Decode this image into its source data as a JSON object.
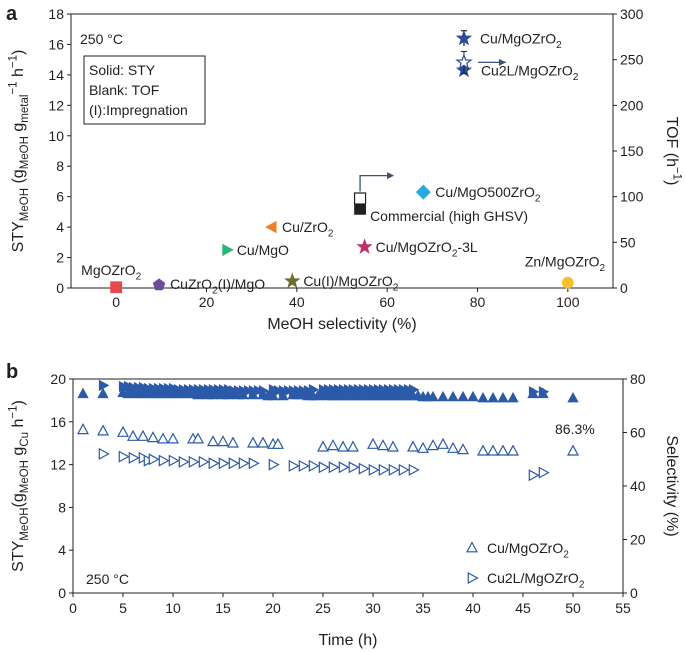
{
  "chart_data": [
    {
      "type": "scatter",
      "panel_label": "a",
      "condition": "250 °C",
      "legend_box": [
        "Solid: STY",
        "Blank: TOF",
        "(I):Impregnation"
      ],
      "xlabel": "MeOH selectivity (%)",
      "ylabel_left": "STY_MeOH (g_MeOH g_metal^-1 h^-1)",
      "ylabel_right": "TOF (h^-1)",
      "xlim": [
        -10,
        110
      ],
      "ylim_left": [
        0,
        18
      ],
      "ylim_right": [
        0,
        300
      ],
      "xticks": [
        "0",
        "20",
        "40",
        "60",
        "80",
        "100"
      ],
      "yticks_left": [
        "0",
        "2",
        "4",
        "6",
        "8",
        "10",
        "12",
        "14",
        "16",
        "18"
      ],
      "yticks_right": [
        "0",
        "50",
        "100",
        "150",
        "200",
        "250",
        "300"
      ],
      "points": [
        {
          "label": "MgOZrO₂",
          "x": 0,
          "y": 0.05,
          "marker": "square",
          "color": "#e8474b",
          "filled": true
        },
        {
          "label": "CuZrO₂(I)/MgO",
          "x": 9.5,
          "y": 0.2,
          "marker": "pentagon",
          "color": "#6a4c9c",
          "filled": true
        },
        {
          "label": "Cu/MgO",
          "x": 24.5,
          "y": 2.5,
          "marker": "triangle-right",
          "color": "#2bb673",
          "filled": true
        },
        {
          "label": "Cu/ZrO₂",
          "x": 34.5,
          "y": 4.0,
          "marker": "triangle-left",
          "color": "#f07f2b",
          "filled": true
        },
        {
          "label": "Cu(I)/MgOZrO₂",
          "x": 39,
          "y": 0.45,
          "marker": "star",
          "color": "#6d6e2b",
          "filled": true
        },
        {
          "label": "Commercial (high GHSV)",
          "x": 54,
          "y": 5.2,
          "marker": "square",
          "color": "#231f20",
          "filled": true
        },
        {
          "label": "Cu/MgOZrO₂-3L",
          "x": 55,
          "y": 2.7,
          "marker": "star",
          "color": "#c0306c",
          "filled": true
        },
        {
          "label": "Cu/MgO500ZrO₂",
          "x": 68,
          "y": 6.3,
          "marker": "diamond",
          "color": "#27a9e1",
          "filled": true
        },
        {
          "label": "Cu/MgOZrO₂",
          "x": 77,
          "y": 16.4,
          "y_err": 0.5,
          "marker": "star",
          "color": "#2b4c9b",
          "filled": true
        },
        {
          "label": "Cu2L/MgOZrO₂",
          "x": 77,
          "y": 14.3,
          "marker": "star",
          "color": "#2b4c9b",
          "filled": true
        },
        {
          "label": "Zn/MgOZrO₂",
          "x": 100,
          "y": 0.35,
          "marker": "circle",
          "color": "#f5c02d",
          "filled": true
        }
      ],
      "tof_points": [
        {
          "for": "Cu/MgOZrO₂",
          "x": 77,
          "tof": 247,
          "tof_err": 12,
          "marker": "star",
          "color": "#2b4c9b",
          "filled": false
        },
        {
          "for": "Commercial (high GHSV)",
          "x": 54,
          "tof": 98,
          "tof_err": 4,
          "marker": "square",
          "color": "#231f20",
          "filled": false
        }
      ]
    },
    {
      "type": "scatter",
      "panel_label": "b",
      "condition": "250 °C",
      "xlabel": "Time (h)",
      "ylabel_left": "STY_MeOH (g_MeOH g_Cu^-1 h^-1)",
      "ylabel_right": "Selectivity (%)",
      "xlim": [
        0,
        55
      ],
      "ylim_left": [
        0,
        20
      ],
      "ylim_right": [
        0,
        80
      ],
      "xticks": [
        "0",
        "5",
        "10",
        "15",
        "20",
        "25",
        "30",
        "35",
        "40",
        "45",
        "50",
        "55"
      ],
      "yticks_left": [
        "0",
        "4",
        "8",
        "12",
        "16",
        "20"
      ],
      "yticks_right": [
        "0",
        "20",
        "40",
        "60",
        "80"
      ],
      "annotation": "86.3%",
      "series": [
        {
          "name": "Cu/MgOZrO₂",
          "marker": "triangle-up",
          "color": "#2b5aa8",
          "filled": true,
          "axis": "left",
          "x": [
            1,
            3,
            5,
            5.5,
            6,
            6.5,
            7,
            7.5,
            8,
            8.5,
            9,
            9.5,
            10,
            10.5,
            11,
            11.5,
            12,
            12.5,
            13,
            13.5,
            14,
            14.5,
            15,
            15.5,
            16,
            16.5,
            17,
            18,
            19,
            19.5,
            20,
            21,
            22,
            22.5,
            23,
            23.5,
            24,
            24.5,
            25,
            25.5,
            26,
            26.5,
            27,
            27.5,
            28,
            28.5,
            29,
            29.5,
            30,
            30.5,
            31,
            31.5,
            32,
            32.5,
            33,
            33.5,
            34,
            34.5,
            35,
            35.5,
            36,
            37,
            38,
            39,
            40,
            41,
            42,
            43,
            44,
            46,
            47,
            50
          ],
          "y": [
            18.6,
            18.6,
            18.7,
            18.6,
            18.6,
            18.6,
            18.6,
            18.6,
            18.6,
            18.6,
            18.6,
            18.6,
            18.6,
            18.6,
            18.6,
            18.6,
            18.6,
            18.5,
            18.6,
            18.5,
            18.5,
            18.6,
            18.5,
            18.5,
            18.6,
            18.5,
            18.5,
            18.5,
            18.5,
            18.4,
            18.4,
            18.4,
            18.5,
            18.5,
            18.5,
            18.4,
            18.4,
            18.4,
            18.5,
            18.4,
            18.4,
            18.4,
            18.4,
            18.4,
            18.4,
            18.4,
            18.4,
            18.4,
            18.4,
            18.4,
            18.4,
            18.4,
            18.4,
            18.4,
            18.4,
            18.4,
            18.4,
            18.4,
            18.3,
            18.3,
            18.3,
            18.3,
            18.3,
            18.3,
            18.3,
            18.2,
            18.2,
            18.2,
            18.2,
            18.6,
            18.6,
            18.2
          ]
        },
        {
          "name": "Cu2L/MgOZrO₂",
          "marker": "triangle-right",
          "color": "#2b5aa8",
          "filled": true,
          "axis": "left",
          "x": [
            3,
            5,
            5.5,
            6,
            6.5,
            7,
            7.5,
            8,
            8.5,
            9,
            9.5,
            10,
            10.5,
            11,
            11.5,
            12,
            12.5,
            13,
            13.5,
            14,
            14.5,
            15,
            15.5,
            16,
            16.5,
            17,
            17.5,
            18,
            18.5,
            19,
            20,
            20.5,
            21,
            21.5,
            22,
            22.5,
            23,
            23.5,
            24,
            25,
            25.5,
            26,
            26.5,
            27,
            27.5,
            28,
            28.5,
            29,
            29.5,
            30,
            30.5,
            31,
            31.5,
            32,
            32.5,
            33,
            33.5,
            34,
            46,
            47
          ],
          "y": [
            19.4,
            19.3,
            19.3,
            19.2,
            19.2,
            19.2,
            19.1,
            19.1,
            19.1,
            19.1,
            19.1,
            19.1,
            19.0,
            19.0,
            19.0,
            19.0,
            19.0,
            19.0,
            19.0,
            19.0,
            19.0,
            19.0,
            19.0,
            18.9,
            18.9,
            18.9,
            18.9,
            18.9,
            18.9,
            18.9,
            19.0,
            18.9,
            18.9,
            18.9,
            18.9,
            18.9,
            18.9,
            18.9,
            19.0,
            19.0,
            19.0,
            19.0,
            19.0,
            19.0,
            19.0,
            19.0,
            19.0,
            19.0,
            19.0,
            19.0,
            19.0,
            19.0,
            19.0,
            19.0,
            19.0,
            19.0,
            19.0,
            19.0,
            18.8,
            18.8
          ]
        },
        {
          "name": "Cu/MgOZrO₂",
          "marker": "triangle-up",
          "color": "#2b5aa8",
          "filled": false,
          "axis": "right",
          "x": [
            1,
            3,
            5,
            6,
            7,
            8,
            9,
            10,
            12,
            12.5,
            14,
            15,
            16,
            18,
            19,
            20,
            20.5,
            25,
            26,
            27,
            28,
            30,
            31,
            32,
            34,
            35,
            36,
            37,
            38,
            39,
            41,
            42,
            43,
            44,
            50
          ],
          "y": [
            61,
            60.5,
            60,
            58.5,
            58.5,
            58,
            57.5,
            57.5,
            57.5,
            57.5,
            56.5,
            56.5,
            56,
            56,
            56,
            55.5,
            55.5,
            54.5,
            55,
            54.5,
            54.5,
            55.5,
            55,
            54.5,
            54.5,
            54,
            55,
            55.5,
            54,
            53.5,
            53,
            53,
            53,
            53,
            53
          ]
        },
        {
          "name": "Cu2L/MgOZrO₂",
          "marker": "triangle-right",
          "color": "#2b5aa8",
          "filled": false,
          "axis": "right",
          "x": [
            3,
            5,
            6,
            7,
            7.5,
            8,
            9,
            10,
            11,
            12,
            13,
            14,
            15,
            16,
            17,
            18,
            20,
            22,
            23,
            24,
            25,
            26,
            27,
            28,
            29,
            30,
            31,
            32,
            33,
            34,
            46,
            47
          ],
          "y": [
            52,
            51,
            50.5,
            50.5,
            49.5,
            50,
            49.5,
            49.5,
            49,
            49,
            49,
            48.5,
            48.5,
            48.5,
            48.5,
            48.5,
            48,
            47.5,
            47.5,
            47.5,
            47,
            47,
            47,
            47,
            46.5,
            46,
            46,
            46,
            46,
            46,
            44,
            45
          ]
        }
      ]
    }
  ]
}
